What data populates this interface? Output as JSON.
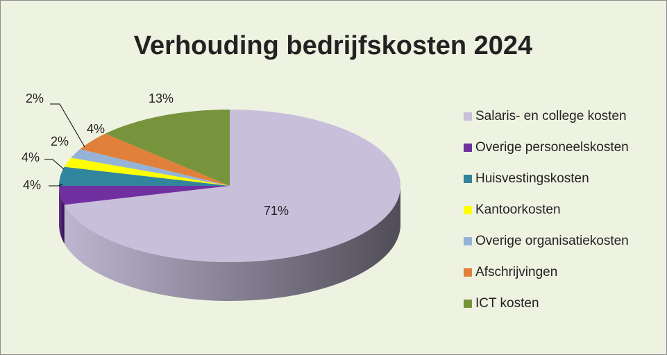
{
  "chart_data": {
    "type": "pie",
    "title": "Verhouding bedrijfskosten 2024",
    "categories": [
      "Salaris- en college kosten",
      "Overige personeelskosten",
      "Huisvestingskosten",
      "Kantoorkosten",
      "Overige organisatiekosten",
      "Afschrijvingen",
      "ICT kosten"
    ],
    "values": [
      71,
      4,
      4,
      2,
      2,
      4,
      13
    ],
    "value_labels": [
      "71%",
      "4%",
      "4%",
      "2%",
      "2%",
      "4%",
      "13%"
    ],
    "colors": [
      "#c8bfdb",
      "#7030a0",
      "#31859c",
      "#ffff00",
      "#95b3d7",
      "#e0803a",
      "#77933c"
    ],
    "legend": "right"
  }
}
